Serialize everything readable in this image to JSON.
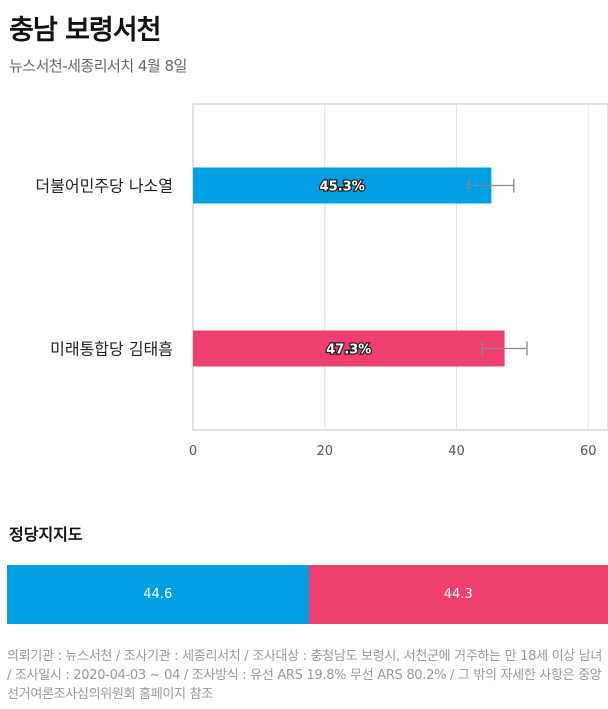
{
  "header": {
    "title": "충남 보령서천",
    "subtitle": "뉴스서천-세종리서치 4월 8일"
  },
  "chart_data": {
    "type": "bar",
    "orientation": "horizontal",
    "categories": [
      "더불어민주당 나소열",
      "미래통합당 김태흠"
    ],
    "values": [
      45.3,
      47.3
    ],
    "value_labels": [
      "45.3%",
      "47.3%"
    ],
    "error_bars": [
      [
        41.9,
        48.7
      ],
      [
        43.9,
        50.7
      ]
    ],
    "colors": [
      "#009fe3",
      "#ef3f6f"
    ],
    "xlim": [
      0,
      63
    ],
    "xticks": [
      0,
      20,
      40,
      60
    ],
    "grid": true
  },
  "party_support": {
    "title": "정당지지도",
    "segments": [
      {
        "value": "44.6",
        "color": "#009fe3"
      },
      {
        "value": "44.3",
        "color": "#ef3f6f"
      }
    ]
  },
  "footer": {
    "text": "의뢰기관 : 뉴스서천 / 조사기관 : 세종리서치 / 조사대상 : 충청남도 보령시, 서천군에 거주하는 만 18세 이상 남녀 / 조사일시 : 2020-04-03 ~ 04 / 조사방식 : 유선 ARS 19.8% 무선 ARS 80.2% / 그 밖의 자세한 사항은 중앙선거여론조사심의위원회 홈페이지 참조"
  }
}
